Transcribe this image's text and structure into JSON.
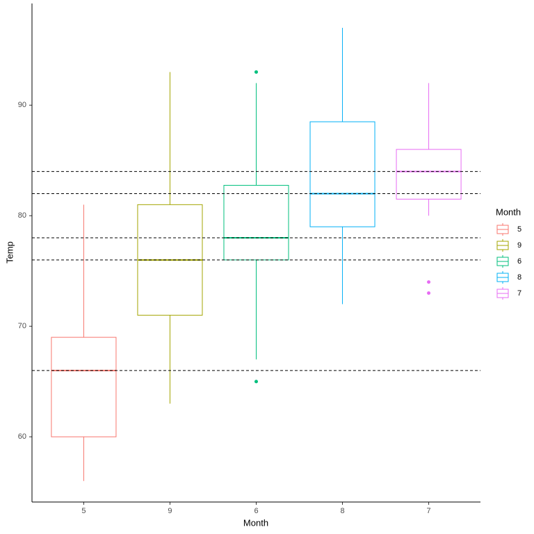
{
  "chart_data": {
    "type": "boxplot",
    "x_label": "Month",
    "y_label": "Temp",
    "legend_title": "Month",
    "categories": [
      "5",
      "9",
      "6",
      "8",
      "7"
    ],
    "colors": [
      "#F8766D",
      "#A3A500",
      "#00BF7D",
      "#00B0F6",
      "#E76BF3"
    ],
    "boxes": [
      {
        "min": 56,
        "q1": 60,
        "median": 66,
        "q3": 69,
        "max": 81,
        "outliers": []
      },
      {
        "min": 63,
        "q1": 71,
        "median": 76,
        "q3": 81,
        "max": 93,
        "outliers": []
      },
      {
        "min": 67,
        "q1": 76,
        "median": 78,
        "q3": 82.75,
        "max": 92,
        "outliers": [
          93,
          65
        ]
      },
      {
        "min": 72,
        "q1": 79,
        "median": 82,
        "q3": 88.5,
        "max": 97,
        "outliers": []
      },
      {
        "min": 80,
        "q1": 81.5,
        "median": 84,
        "q3": 86,
        "max": 92,
        "outliers": [
          74,
          73
        ]
      }
    ],
    "hlines": [
      84,
      82,
      78,
      76,
      66
    ],
    "ylim": [
      54.1,
      99.2
    ],
    "yticks": [
      60,
      70,
      80,
      90
    ]
  }
}
